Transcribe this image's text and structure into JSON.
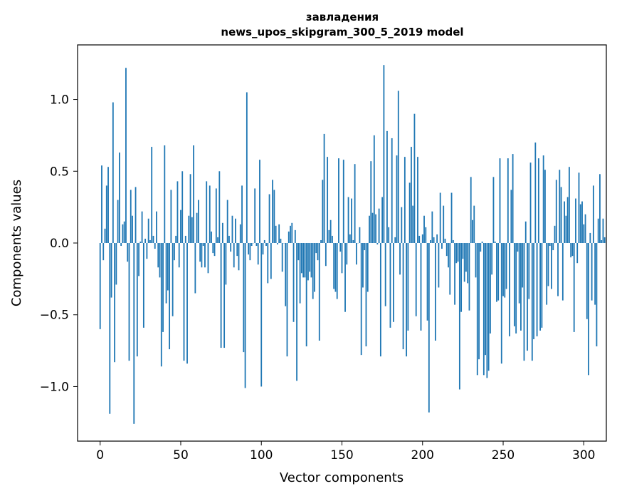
{
  "chart_data": {
    "type": "bar",
    "title_line1": "завладения",
    "title_line2": "news_upos_skipgram_300_5_2019 model",
    "xlabel": "Vector components",
    "ylabel": "Components values",
    "xlim": [
      -14,
      314
    ],
    "ylim": [
      -1.38,
      1.38
    ],
    "xticks": [
      0,
      50,
      100,
      150,
      200,
      250,
      300
    ],
    "yticks": [
      -1.0,
      -0.5,
      0.0,
      0.5,
      1.0
    ],
    "xtick_labels": [
      "0",
      "50",
      "100",
      "150",
      "200",
      "250",
      "300"
    ],
    "ytick_labels": [
      "−1.0",
      "−0.5",
      "0.0",
      "0.5",
      "1.0"
    ],
    "bar_color": "#1f77b4",
    "values": [
      -0.6,
      0.54,
      -0.12,
      0.1,
      0.4,
      0.53,
      -1.19,
      -0.38,
      0.98,
      -0.83,
      -0.29,
      0.3,
      0.63,
      -0.02,
      0.13,
      0.15,
      1.22,
      -0.13,
      -0.82,
      0.37,
      0.19,
      -1.26,
      0.39,
      -0.79,
      -0.23,
      0.01,
      0.22,
      -0.59,
      0.03,
      -0.11,
      0.17,
      0.02,
      0.67,
      0.05,
      -0.04,
      0.22,
      -0.17,
      -0.24,
      -0.86,
      -0.62,
      0.68,
      -0.42,
      -0.33,
      -0.74,
      0.37,
      -0.51,
      -0.12,
      0.05,
      0.43,
      -0.17,
      0.23,
      0.5,
      -0.82,
      0.05,
      -0.84,
      0.19,
      0.48,
      0.18,
      0.68,
      -0.35,
      0.21,
      0.3,
      -0.13,
      -0.17,
      -0.02,
      -0.17,
      0.43,
      -0.21,
      0.4,
      0.08,
      -0.07,
      -0.09,
      0.38,
      0.04,
      0.5,
      -0.73,
      0.14,
      -0.73,
      -0.29,
      0.3,
      0.05,
      -0.06,
      0.19,
      -0.17,
      0.17,
      -0.09,
      -0.19,
      0.13,
      0.4,
      -0.76,
      -1.01,
      1.05,
      -0.08,
      -0.12,
      -0.02,
      0.0,
      0.38,
      -0.02,
      -0.15,
      0.58,
      -1.0,
      -0.08,
      0.02,
      -0.02,
      -0.28,
      0.34,
      -0.25,
      0.44,
      0.37,
      0.12,
      -0.01,
      0.13,
      0.03,
      -0.2,
      0.0,
      -0.44,
      -0.79,
      0.08,
      0.12,
      0.14,
      -0.55,
      0.09,
      -0.96,
      -0.12,
      -0.42,
      -0.21,
      -0.24,
      -0.24,
      -0.72,
      -0.26,
      -0.2,
      -0.24,
      -0.39,
      -0.34,
      -0.07,
      -0.12,
      -0.68,
      0.02,
      0.44,
      0.76,
      -0.16,
      0.6,
      0.09,
      0.16,
      0.05,
      -0.32,
      -0.34,
      -0.39,
      0.59,
      -0.06,
      -0.21,
      0.58,
      -0.48,
      -0.15,
      0.32,
      0.06,
      0.31,
      0.02,
      0.55,
      -0.15,
      0.0,
      0.11,
      -0.78,
      -0.31,
      -0.05,
      -0.72,
      -0.34,
      0.19,
      0.57,
      0.21,
      0.75,
      0.2,
      -0.01,
      0.24,
      -0.79,
      0.32,
      1.24,
      -0.44,
      0.78,
      0.11,
      -0.59,
      0.73,
      -0.55,
      0.04,
      0.61,
      1.06,
      -0.22,
      0.25,
      -0.74,
      0.6,
      -0.79,
      -0.61,
      0.42,
      0.67,
      0.26,
      0.9,
      -0.51,
      0.6,
      0.05,
      -0.61,
      0.06,
      0.19,
      0.11,
      -0.54,
      -1.18,
      0.02,
      0.22,
      0.04,
      -0.68,
      0.06,
      -0.31,
      0.35,
      -0.04,
      0.26,
      0.03,
      -0.09,
      -0.17,
      -0.36,
      0.35,
      0.02,
      -0.43,
      -0.14,
      -0.13,
      -1.02,
      -0.48,
      -0.11,
      -0.27,
      -0.2,
      -0.28,
      -0.47,
      0.46,
      0.16,
      0.26,
      -0.24,
      -0.92,
      -0.81,
      -0.06,
      0.01,
      -0.92,
      -0.78,
      -0.94,
      -0.89,
      -0.63,
      -0.22,
      0.46,
      0.01,
      -0.41,
      -0.4,
      0.59,
      -0.84,
      -0.37,
      -0.38,
      -0.32,
      0.59,
      -0.65,
      0.37,
      0.62,
      -0.58,
      -0.63,
      -0.06,
      -0.42,
      -0.61,
      -0.31,
      -0.82,
      0.15,
      -0.75,
      -0.39,
      0.56,
      -0.82,
      -0.67,
      0.7,
      -0.65,
      0.59,
      -0.61,
      -0.59,
      0.61,
      0.51,
      -0.43,
      -0.3,
      -0.02,
      -0.32,
      -0.05,
      0.12,
      0.44,
      -0.37,
      0.51,
      0.39,
      -0.4,
      0.29,
      0.19,
      0.32,
      0.53,
      -0.1,
      -0.09,
      -0.62,
      0.31,
      -0.14,
      0.49,
      0.27,
      0.29,
      0.13,
      0.2,
      -0.53,
      -0.92,
      0.07,
      -0.4,
      0.4,
      -0.43,
      -0.72,
      0.17,
      0.48,
      0.02,
      0.17,
      0.04
    ]
  }
}
